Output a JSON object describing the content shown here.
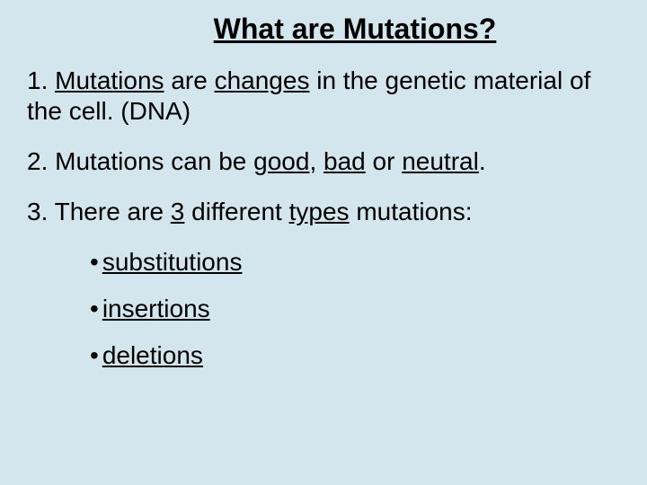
{
  "background_color": "#d3e5ed",
  "text_color": "#000000",
  "font_family": "Arial",
  "title": "What are Mutations?",
  "point1": {
    "prefix": "1. ",
    "u1": "Mutations",
    "mid1": " are ",
    "u2": "changes",
    "suffix": " in the genetic material of the cell. (DNA)"
  },
  "point2": {
    "prefix": "2. Mutations can be ",
    "u1": "good",
    "sep1": ", ",
    "u2": "bad",
    "sep2": " or ",
    "u3": "neutral",
    "suffix": "."
  },
  "point3": {
    "prefix": "3. There are ",
    "u1": "3",
    "mid": " different ",
    "u2": "types",
    "suffix": " mutations:"
  },
  "bullets": {
    "b1": "substitutions",
    "b2": "insertions",
    "b3": "deletions"
  }
}
